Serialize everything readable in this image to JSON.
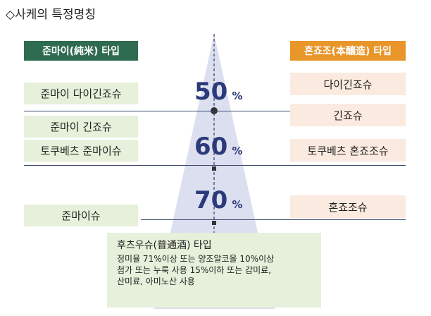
{
  "title": "◇사케의 특정명칭",
  "colors": {
    "junmai": "#2f6b50",
    "honjozo": "#e8952a",
    "green_box": "#e6f0da",
    "peach_box": "#fbeadf",
    "funnel": "#dcdff0",
    "percent": "#2d3a7a",
    "lines": "#3a4a6b"
  },
  "left": {
    "header": "준마이(純米) 타입",
    "items": [
      "준마이 다이긴죠슈",
      "준마이 긴죠슈",
      "토쿠베츠 준마이슈",
      "준마이슈"
    ]
  },
  "right": {
    "header": "혼죠조(本釀造) 타입",
    "items": [
      "다이긴죠슈",
      "긴죠슈",
      "토쿠베츠 혼죠조슈",
      "혼죠조슈"
    ]
  },
  "polish_levels": [
    {
      "value": "50",
      "unit": "%"
    },
    {
      "value": "60",
      "unit": "%"
    },
    {
      "value": "70",
      "unit": "%"
    }
  ],
  "futsu": {
    "title": "후츠우슈(普通酒) 타입",
    "lines": [
      "정미율 71%이상 또는 양조알코올 10%이상",
      "첨가 또는 누룩 사용 15%이하 또는 감미료,",
      "산미료, 아미노산 사용"
    ]
  }
}
